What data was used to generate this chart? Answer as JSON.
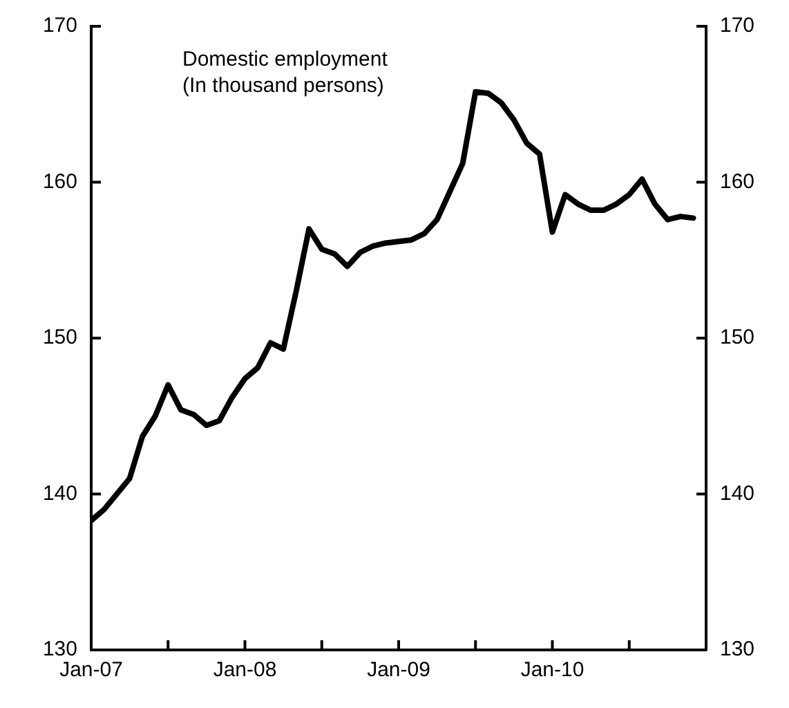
{
  "chart_data": {
    "type": "line",
    "annotations": [
      "Domestic employment",
      "(In thousand persons)"
    ],
    "x": [
      "2007-01",
      "2007-02",
      "2007-03",
      "2007-04",
      "2007-05",
      "2007-06",
      "2007-07",
      "2007-08",
      "2007-09",
      "2007-10",
      "2007-11",
      "2007-12",
      "2008-01",
      "2008-02",
      "2008-03",
      "2008-04",
      "2008-05",
      "2008-06",
      "2008-07",
      "2008-08",
      "2008-09",
      "2008-10",
      "2008-11",
      "2008-12",
      "2009-01",
      "2009-02",
      "2009-03",
      "2009-04",
      "2009-05",
      "2009-06",
      "2009-07",
      "2009-08",
      "2009-09",
      "2009-10",
      "2009-11",
      "2009-12",
      "2010-01",
      "2010-02",
      "2010-03",
      "2010-04",
      "2010-05",
      "2010-06",
      "2010-07",
      "2010-08",
      "2010-09",
      "2010-10",
      "2010-11",
      "2010-12"
    ],
    "series": [
      {
        "color": "#000000",
        "values": [
          138.3,
          139.0,
          140.0,
          141.0,
          143.7,
          145.0,
          147.0,
          145.4,
          145.1,
          144.4,
          144.7,
          146.2,
          147.4,
          148.1,
          149.7,
          149.3,
          153.0,
          157.0,
          155.7,
          155.4,
          154.6,
          155.5,
          155.9,
          156.1,
          156.2,
          156.3,
          156.7,
          157.6,
          159.4,
          161.2,
          165.8,
          165.7,
          165.1,
          164.0,
          162.5,
          161.8,
          156.8,
          159.2,
          158.6,
          158.2,
          158.2,
          158.6,
          159.2,
          160.2,
          158.6,
          157.6,
          157.8,
          157.7
        ]
      }
    ],
    "xlim": [
      "2007-01",
      "2011-01"
    ],
    "xticks": [
      {
        "value": "2007-01",
        "label": "Jan-07"
      },
      {
        "value": "2007-07",
        "label": null
      },
      {
        "value": "2008-01",
        "label": "Jan-08"
      },
      {
        "value": "2008-07",
        "label": null
      },
      {
        "value": "2009-01",
        "label": "Jan-09"
      },
      {
        "value": "2009-07",
        "label": null
      },
      {
        "value": "2010-01",
        "label": "Jan-10"
      },
      {
        "value": "2010-07",
        "label": null
      },
      {
        "value": "2011-01",
        "label": null
      }
    ],
    "ylim": [
      130,
      170
    ],
    "yticks": [
      130,
      140,
      150,
      160,
      170
    ],
    "y2lim": [
      130,
      170
    ],
    "y2ticks": [
      130,
      140,
      150,
      160,
      170
    ],
    "grid": false,
    "legend": false,
    "marker": "none",
    "line_style": "solid"
  }
}
